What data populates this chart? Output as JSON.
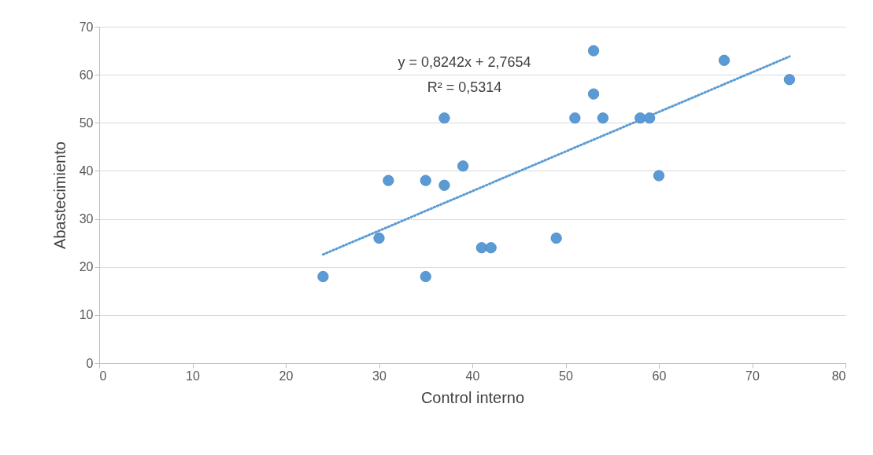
{
  "chart_data": {
    "type": "scatter",
    "xlabel": "Control interno",
    "ylabel": "Abastecimiento",
    "xlim": [
      0,
      80
    ],
    "xticks": [
      0,
      10,
      20,
      30,
      40,
      50,
      60,
      70,
      80
    ],
    "ylim": [
      0,
      70
    ],
    "yticks": [
      0,
      10,
      20,
      30,
      40,
      50,
      60,
      70
    ],
    "grid": "y",
    "marker": "circle",
    "annotations": [
      "y = 0,8242x + 2,7654",
      "R² = 0,5314"
    ],
    "series": [
      {
        "color": "#5b9bd5",
        "x": [
          24,
          30,
          31,
          35,
          35,
          37,
          37,
          39,
          41,
          42,
          49,
          51,
          53,
          53,
          54,
          58,
          59,
          60,
          67,
          74
        ],
        "values": [
          18,
          26,
          38,
          38,
          18,
          51,
          37,
          41,
          24,
          24,
          26,
          51,
          65,
          56,
          51,
          51,
          51,
          39,
          63,
          59
        ]
      },
      {
        "type": "line",
        "color": "#5b9bd5",
        "line_style": "dotted",
        "marker": "none",
        "x": [
          24,
          74
        ],
        "values": [
          22.6,
          63.8
        ]
      }
    ]
  }
}
